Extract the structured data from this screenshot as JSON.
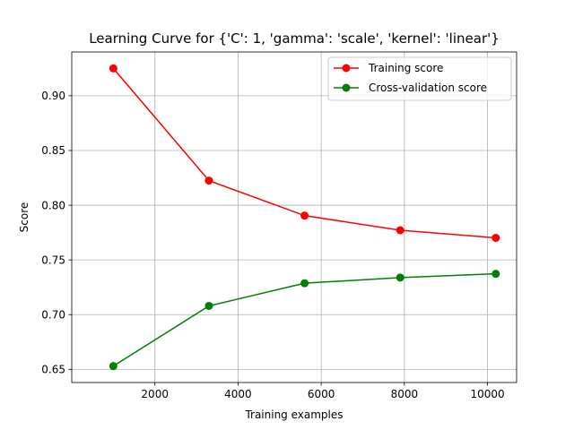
{
  "chart_data": {
    "type": "line",
    "title": "Learning Curve for {'C': 1, 'gamma': 'scale', 'kernel': 'linear'}",
    "xlabel": "Training examples",
    "ylabel": "Score",
    "xlim": [
      0,
      10700
    ],
    "ylim": [
      0.638,
      0.94
    ],
    "xticks": [
      2000,
      4000,
      6000,
      8000,
      10000
    ],
    "xtick_labels": [
      "2000",
      "4000",
      "6000",
      "8000",
      "10000"
    ],
    "yticks": [
      0.65,
      0.7,
      0.75,
      0.8,
      0.85,
      0.9
    ],
    "ytick_labels": [
      "0.65",
      "0.70",
      "0.75",
      "0.80",
      "0.85",
      "0.90"
    ],
    "grid": true,
    "legend_position": "top-right",
    "x": [
      1000,
      3300,
      5600,
      7900,
      10200
    ],
    "series": [
      {
        "name": "Training score",
        "color": "#ff0000",
        "marker": "circle",
        "values": [
          0.925,
          0.8225,
          0.7905,
          0.7771,
          0.7702
        ]
      },
      {
        "name": "Cross-validation score",
        "color": "#008000",
        "marker": "circle",
        "values": [
          0.653,
          0.708,
          0.7287,
          0.7339,
          0.7373
        ]
      }
    ]
  }
}
